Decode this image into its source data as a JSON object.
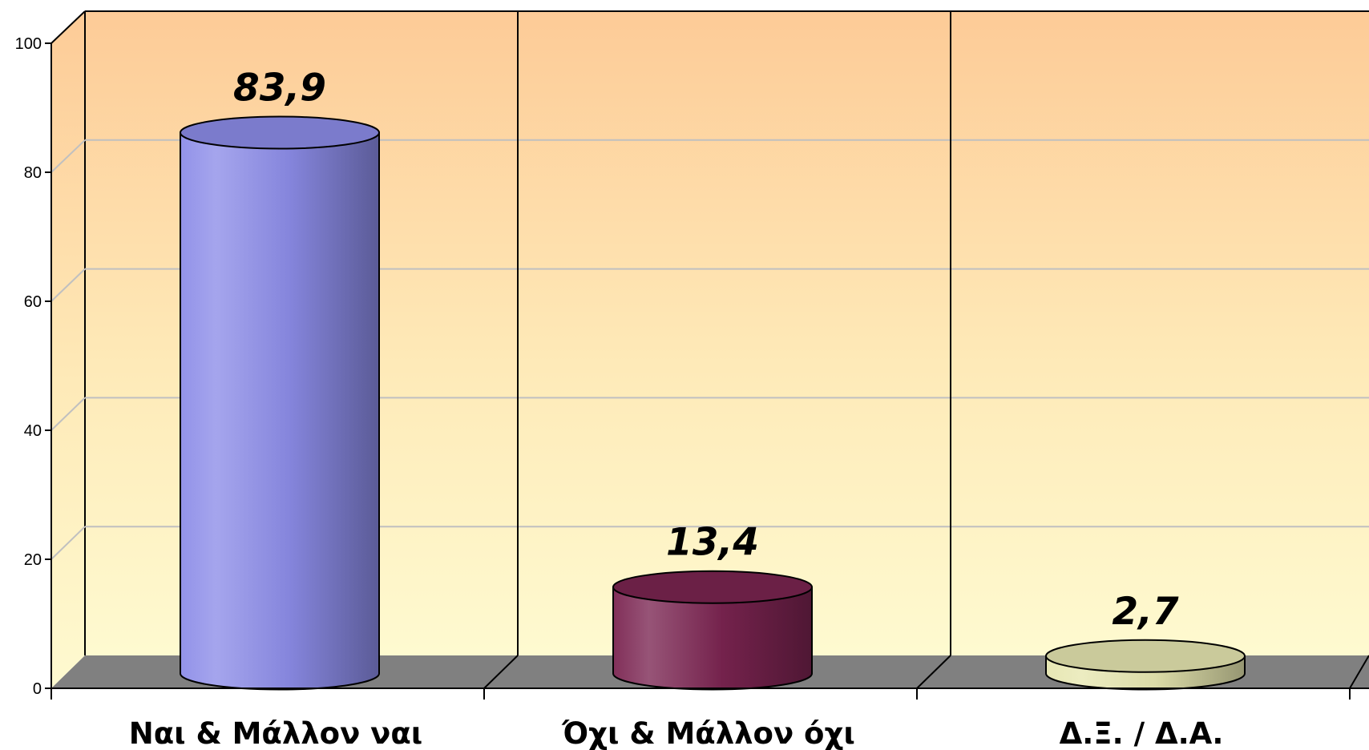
{
  "chart_data": {
    "type": "bar",
    "style": "3d-cylinder",
    "categories": [
      "Ναι & Μάλλον ναι",
      "Όχι & Μάλλον όχι",
      "Δ.Ξ. / Δ.Α."
    ],
    "values": [
      83.9,
      13.4,
      2.7
    ],
    "data_labels": [
      "83,9",
      "13,4",
      "2,7"
    ],
    "bar_colors": [
      "#8c8ce8",
      "#7a2450",
      "#e6e6b0"
    ],
    "title": "",
    "xlabel": "",
    "ylabel": "",
    "ylim": [
      0,
      100
    ],
    "yticks": [
      "0",
      "20",
      "40",
      "60",
      "80",
      "100"
    ],
    "grid": true,
    "legend": "none",
    "background_gradient": [
      "#fdcb97",
      "#fefad0"
    ]
  }
}
